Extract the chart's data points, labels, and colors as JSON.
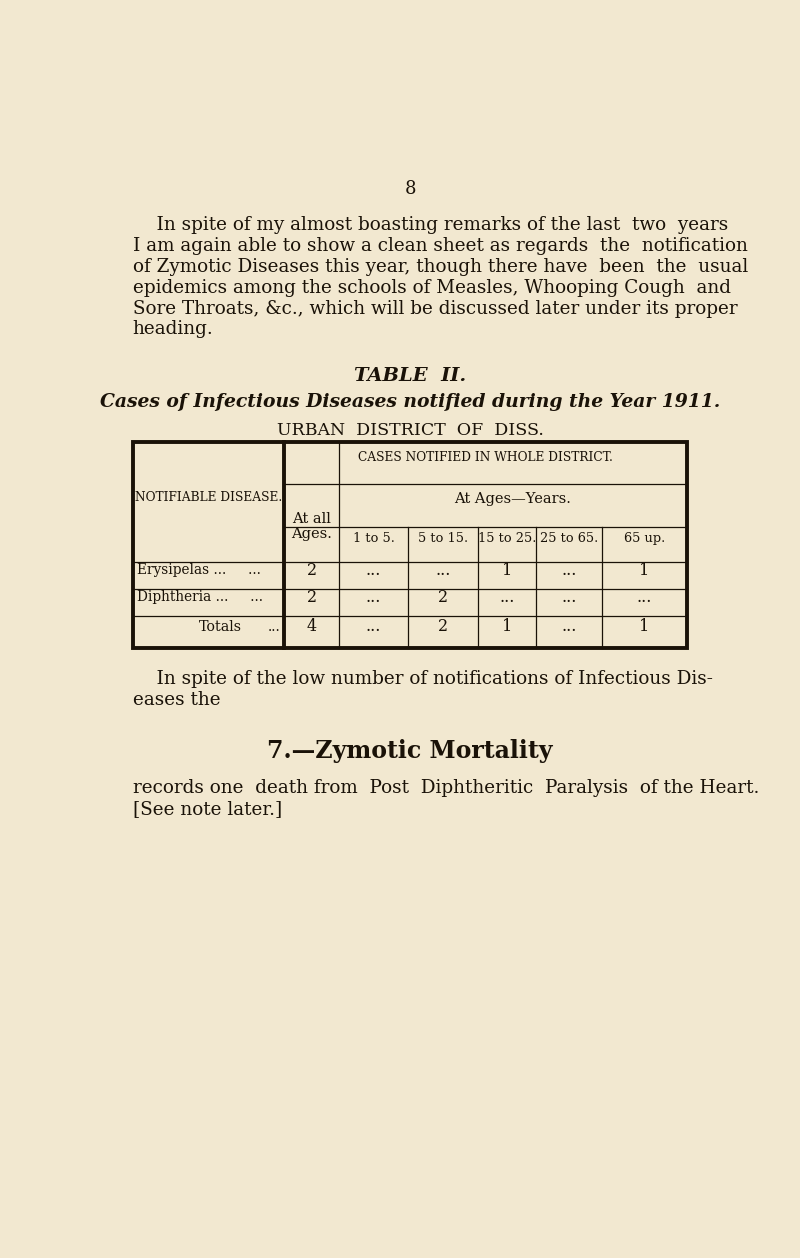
{
  "bg_color": "#f2e8d0",
  "text_color": "#1a1208",
  "page_number": "8",
  "intro_lines": [
    "    In spite of my almost boasting remarks of the last  two  years",
    "I am again able to show a clean sheet as regards  the  notification",
    "of Zymotic Diseases this year, though there have  been  the  usual",
    "epidemics among the schools of Measles, Whooping Cough  and",
    "Sore Throats, &c., which will be discussed later under its proper",
    "heading."
  ],
  "table_title": "TABLE  II.",
  "table_subtitle": "Cases of Infectious Diseases notified during the Year 1911.",
  "table_location": "URBAN  DISTRICT  OF  DISS.",
  "col_header_main": "CASES NOTIFIED IN WHOLE DISTRICT.",
  "col_header_atall_line1": "At all",
  "col_header_atall_line2": "Ages.",
  "col_header_ages": "At Ages—Years.",
  "col_headers_age_ranges": [
    "1 to 5.",
    "5 to 15.",
    "15 to 25.",
    "25 to 65.",
    "65 up."
  ],
  "row_header_label": "NOTIFIABLE DISEASE.",
  "disease1": "Erysipelas ...     ...",
  "disease2": "Diphtheria ...     ...",
  "d1_at_all": "2",
  "d1_age_1_5": "...",
  "d1_age_5_15": "...",
  "d1_age_15_25": "1",
  "d1_age_25_65": "...",
  "d1_age_65up": "1",
  "d2_at_all": "2",
  "d2_age_1_5": "...",
  "d2_age_5_15": "2",
  "d2_age_15_25": "...",
  "d2_age_25_65": "...",
  "d2_age_65up": "...",
  "totals_label": "Totals",
  "totals_dots": "...",
  "totals_at_all": "4",
  "totals_1_5": "...",
  "totals_5_15": "2",
  "totals_15_25": "1",
  "totals_25_65": "...",
  "totals_65up": "1",
  "outro_lines": [
    "    In spite of the low number of notifications of Infectious Dis-",
    "eases the"
  ],
  "section_heading": "7.—Zymotic Mortality",
  "section_lines": [
    "records one  death from  Post  Diphtheritic  Paralysis  of the Heart.",
    "[See note later.]"
  ]
}
